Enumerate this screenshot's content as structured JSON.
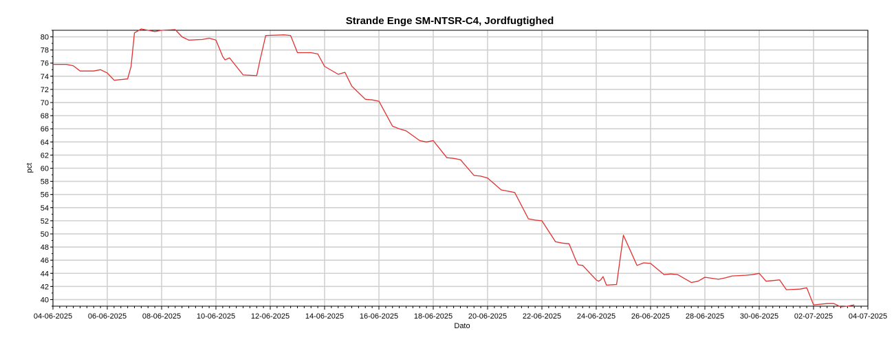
{
  "chart_data": {
    "type": "line",
    "title": "Strande Enge SM-NTSR-C4, Jordfugtighed",
    "xlabel": "Dato",
    "ylabel": "pct",
    "xlim": [
      "2025-06-04",
      "2025-07-04"
    ],
    "ylim": [
      39,
      81
    ],
    "x_ticks": [
      "04-06-2025",
      "06-06-2025",
      "08-06-2025",
      "10-06-2025",
      "12-06-2025",
      "14-06-2025",
      "16-06-2025",
      "18-06-2025",
      "20-06-2025",
      "22-06-2025",
      "24-06-2025",
      "26-06-2025",
      "28-06-2025",
      "30-06-2025",
      "02-07-2025",
      "04-07-2025"
    ],
    "y_ticks": [
      40,
      42,
      44,
      46,
      48,
      50,
      52,
      54,
      56,
      58,
      60,
      62,
      64,
      66,
      68,
      70,
      72,
      74,
      76,
      78,
      80
    ],
    "grid": true,
    "series": [
      {
        "color": "#e03030",
        "x": [
          "2025-06-04 00:00",
          "2025-06-04 12:00",
          "2025-06-04 18:00",
          "2025-06-05 00:00",
          "2025-06-05 12:00",
          "2025-06-05 18:00",
          "2025-06-06 00:00",
          "2025-06-06 06:00",
          "2025-06-06 18:00",
          "2025-06-06 21:00",
          "2025-06-07 00:00",
          "2025-06-07 06:00",
          "2025-06-07 18:00",
          "2025-06-08 00:00",
          "2025-06-08 12:00",
          "2025-06-08 18:00",
          "2025-06-09 00:00",
          "2025-06-09 12:00",
          "2025-06-09 18:00",
          "2025-06-10 00:00",
          "2025-06-10 06:00",
          "2025-06-10 08:00",
          "2025-06-10 12:00",
          "2025-06-11 00:00",
          "2025-06-11 12:00",
          "2025-06-11 15:00",
          "2025-06-11 20:00",
          "2025-06-12 12:00",
          "2025-06-12 18:00",
          "2025-06-13 00:00",
          "2025-06-13 12:00",
          "2025-06-13 18:00",
          "2025-06-14 00:00",
          "2025-06-14 12:00",
          "2025-06-14 18:00",
          "2025-06-15 00:00",
          "2025-06-15 12:00",
          "2025-06-15 18:00",
          "2025-06-16 00:00",
          "2025-06-16 12:00",
          "2025-06-16 18:00",
          "2025-06-17 00:00",
          "2025-06-17 12:00",
          "2025-06-17 18:00",
          "2025-06-18 00:00",
          "2025-06-18 12:00",
          "2025-06-18 18:00",
          "2025-06-19 00:00",
          "2025-06-19 12:00",
          "2025-06-19 18:00",
          "2025-06-20 00:00",
          "2025-06-20 12:00",
          "2025-06-20 18:00",
          "2025-06-21 00:00",
          "2025-06-21 12:00",
          "2025-06-21 18:00",
          "2025-06-22 00:00",
          "2025-06-22 12:00",
          "2025-06-22 18:00",
          "2025-06-23 00:00",
          "2025-06-23 06:00",
          "2025-06-23 08:00",
          "2025-06-23 12:00",
          "2025-06-24 00:00",
          "2025-06-24 02:00",
          "2025-06-24 04:00",
          "2025-06-24 06:00",
          "2025-06-24 09:00",
          "2025-06-24 18:00",
          "2025-06-25 00:00",
          "2025-06-25 06:00",
          "2025-06-25 12:00",
          "2025-06-25 18:00",
          "2025-06-26 00:00",
          "2025-06-26 12:00",
          "2025-06-26 18:00",
          "2025-06-27 00:00",
          "2025-06-27 12:00",
          "2025-06-27 18:00",
          "2025-06-28 00:00",
          "2025-06-28 12:00",
          "2025-06-28 18:00",
          "2025-06-29 00:00",
          "2025-06-29 12:00",
          "2025-06-29 18:00",
          "2025-06-30 00:00",
          "2025-06-30 06:00",
          "2025-06-30 12:00",
          "2025-06-30 18:00",
          "2025-07-01 00:00",
          "2025-07-01 12:00",
          "2025-07-01 18:00",
          "2025-07-02 00:00",
          "2025-07-02 12:00",
          "2025-07-02 18:00",
          "2025-07-03 00:00",
          "2025-07-03 06:00",
          "2025-07-03 12:00"
        ],
        "y": [
          75.8,
          75.8,
          75.6,
          74.8,
          74.8,
          75.0,
          74.5,
          73.4,
          73.6,
          75.5,
          80.6,
          81.2,
          80.8,
          81.0,
          81.1,
          80.0,
          79.5,
          79.6,
          79.8,
          79.5,
          77.0,
          76.5,
          76.8,
          74.2,
          74.1,
          76.5,
          80.2,
          80.3,
          80.2,
          77.6,
          77.6,
          77.4,
          75.5,
          74.3,
          74.6,
          72.5,
          70.5,
          70.4,
          70.2,
          66.4,
          66.0,
          65.7,
          64.2,
          64.0,
          64.2,
          61.6,
          61.5,
          61.3,
          58.9,
          58.8,
          58.5,
          56.7,
          56.5,
          56.3,
          52.3,
          52.1,
          52.0,
          48.8,
          48.6,
          48.5,
          46.0,
          45.3,
          45.2,
          43.0,
          42.8,
          43.0,
          43.5,
          42.2,
          42.3,
          49.8,
          47.5,
          45.2,
          45.6,
          45.5,
          43.8,
          43.9,
          43.8,
          42.6,
          42.8,
          43.4,
          43.1,
          43.3,
          43.6,
          43.7,
          43.8,
          44.0,
          42.8,
          42.9,
          43.0,
          41.5,
          41.6,
          41.8,
          39.2,
          39.4,
          39.4,
          38.9,
          39.0,
          39.2
        ]
      }
    ]
  }
}
